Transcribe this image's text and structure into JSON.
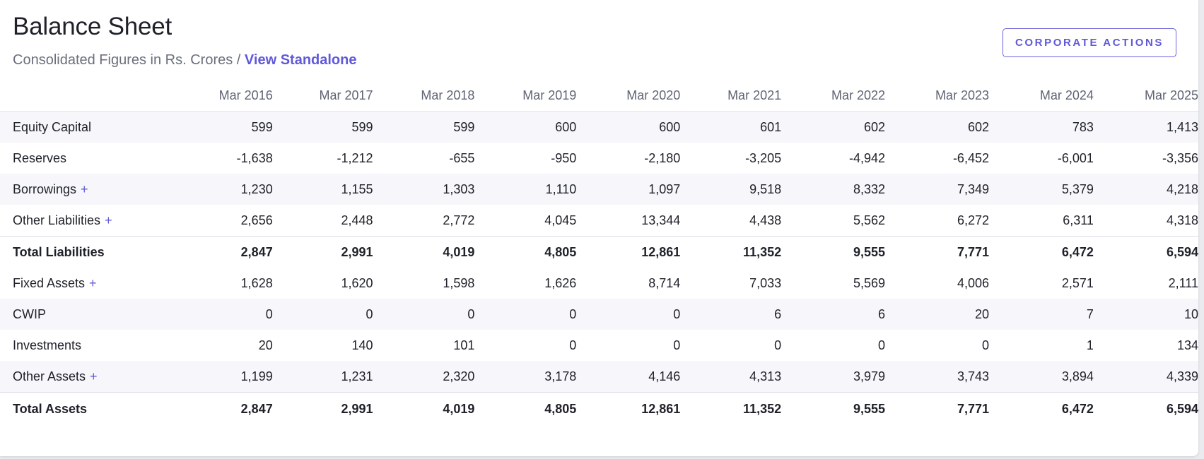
{
  "header": {
    "title": "Balance Sheet",
    "subtitle_prefix": "Consolidated Figures in Rs. Crores / ",
    "subtitle_link": "View Standalone",
    "corporate_actions_label": "CORPORATE ACTIONS"
  },
  "table": {
    "columns": [
      "Mar 2016",
      "Mar 2017",
      "Mar 2018",
      "Mar 2019",
      "Mar 2020",
      "Mar 2021",
      "Mar 2022",
      "Mar 2023",
      "Mar 2024",
      "Mar 2025"
    ],
    "rows": [
      {
        "label": "Equity Capital",
        "expandable": false,
        "total": false,
        "values": [
          "599",
          "599",
          "599",
          "600",
          "600",
          "601",
          "602",
          "602",
          "783",
          "1,413"
        ]
      },
      {
        "label": "Reserves",
        "expandable": false,
        "total": false,
        "values": [
          "-1,638",
          "-1,212",
          "-655",
          "-950",
          "-2,180",
          "-3,205",
          "-4,942",
          "-6,452",
          "-6,001",
          "-3,356"
        ]
      },
      {
        "label": "Borrowings",
        "expandable": true,
        "total": false,
        "values": [
          "1,230",
          "1,155",
          "1,303",
          "1,110",
          "1,097",
          "9,518",
          "8,332",
          "7,349",
          "5,379",
          "4,218"
        ]
      },
      {
        "label": "Other Liabilities",
        "expandable": true,
        "total": false,
        "values": [
          "2,656",
          "2,448",
          "2,772",
          "4,045",
          "13,344",
          "4,438",
          "5,562",
          "6,272",
          "6,311",
          "4,318"
        ]
      },
      {
        "label": "Total Liabilities",
        "expandable": false,
        "total": true,
        "values": [
          "2,847",
          "2,991",
          "4,019",
          "4,805",
          "12,861",
          "11,352",
          "9,555",
          "7,771",
          "6,472",
          "6,594"
        ]
      },
      {
        "label": "Fixed Assets",
        "expandable": true,
        "total": false,
        "values": [
          "1,628",
          "1,620",
          "1,598",
          "1,626",
          "8,714",
          "7,033",
          "5,569",
          "4,006",
          "2,571",
          "2,111"
        ]
      },
      {
        "label": "CWIP",
        "expandable": false,
        "total": false,
        "values": [
          "0",
          "0",
          "0",
          "0",
          "0",
          "6",
          "6",
          "20",
          "7",
          "10"
        ]
      },
      {
        "label": "Investments",
        "expandable": false,
        "total": false,
        "values": [
          "20",
          "140",
          "101",
          "0",
          "0",
          "0",
          "0",
          "0",
          "1",
          "134"
        ]
      },
      {
        "label": "Other Assets",
        "expandable": true,
        "total": false,
        "values": [
          "1,199",
          "1,231",
          "2,320",
          "3,178",
          "4,146",
          "4,313",
          "3,979",
          "3,743",
          "3,894",
          "4,339"
        ]
      },
      {
        "label": "Total Assets",
        "expandable": false,
        "total": true,
        "values": [
          "2,847",
          "2,991",
          "4,019",
          "4,805",
          "12,861",
          "11,352",
          "9,555",
          "7,771",
          "6,472",
          "6,594"
        ]
      }
    ],
    "expand_symbol": "+"
  },
  "colors": {
    "accent": "#6059d8",
    "row_stripe": "#f7f7fb",
    "muted_text": "#6b6f7c"
  }
}
